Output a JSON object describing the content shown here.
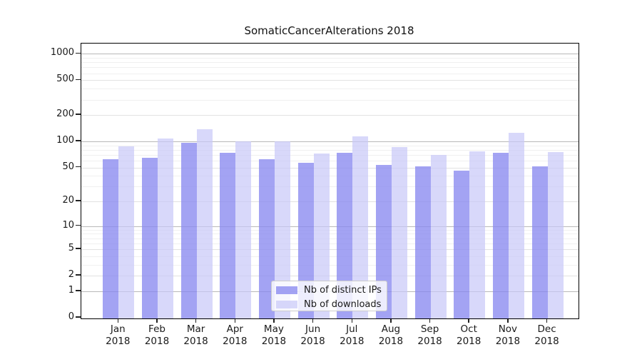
{
  "title": "SomaticCancerAlterations 2018",
  "chart_data": {
    "type": "bar",
    "title": "SomaticCancerAlterations 2018",
    "categories": [
      "Jan 2018",
      "Feb 2018",
      "Mar 2018",
      "Apr 2018",
      "May 2018",
      "Jun 2018",
      "Jul 2018",
      "Aug 2018",
      "Sep 2018",
      "Oct 2018",
      "Nov 2018",
      "Dec 2018"
    ],
    "x_tick_labels": [
      {
        "month": "Jan",
        "year": "2018"
      },
      {
        "month": "Feb",
        "year": "2018"
      },
      {
        "month": "Mar",
        "year": "2018"
      },
      {
        "month": "Apr",
        "year": "2018"
      },
      {
        "month": "May",
        "year": "2018"
      },
      {
        "month": "Jun",
        "year": "2018"
      },
      {
        "month": "Jul",
        "year": "2018"
      },
      {
        "month": "Aug",
        "year": "2018"
      },
      {
        "month": "Sep",
        "year": "2018"
      },
      {
        "month": "Oct",
        "year": "2018"
      },
      {
        "month": "Nov",
        "year": "2018"
      },
      {
        "month": "Dec",
        "year": "2018"
      }
    ],
    "series": [
      {
        "name": "Nb of distinct IPs",
        "color_hex": "#8989f0",
        "alpha": 0.78,
        "values": [
          63,
          65,
          96,
          74,
          62,
          57,
          74,
          54,
          52,
          46,
          74,
          52
        ]
      },
      {
        "name": "Nb of downloads",
        "color_hex": "#c8c8f8",
        "alpha": 0.7,
        "values": [
          87,
          109,
          137,
          100,
          100,
          72,
          114,
          86,
          70,
          77,
          125,
          76
        ]
      }
    ],
    "y_scale": "log10(value+1)",
    "y_ticks": [
      {
        "value": 0,
        "label": "0"
      },
      {
        "value": 1,
        "label": "1"
      },
      {
        "value": 2,
        "label": "2"
      },
      {
        "value": 5,
        "label": "5"
      },
      {
        "value": 10,
        "label": "10"
      },
      {
        "value": 20,
        "label": "20"
      },
      {
        "value": 50,
        "label": "50"
      },
      {
        "value": 100,
        "label": "100"
      },
      {
        "value": 200,
        "label": "200"
      },
      {
        "value": 500,
        "label": "500"
      },
      {
        "value": 1000,
        "label": "1000"
      }
    ],
    "y_minor_ticks": [
      3,
      4,
      6,
      7,
      8,
      9,
      30,
      40,
      60,
      70,
      80,
      90,
      300,
      400,
      600,
      700,
      800,
      900
    ],
    "ylim": [
      0,
      1300
    ],
    "xlabel": "",
    "ylabel": "",
    "grid": "horizontal",
    "legend": {
      "position": "bottom-center",
      "entries": [
        "Nb of distinct IPs",
        "Nb of downloads"
      ]
    }
  },
  "colors": {
    "background": "#ffffff",
    "spine": "#000000",
    "grid_decade": "#b8b8b8",
    "grid_submajor": "#e2e2e2",
    "grid_minor": "#f0f0f0",
    "text": "#1a1a1a",
    "legend_border": "#cccccc"
  }
}
